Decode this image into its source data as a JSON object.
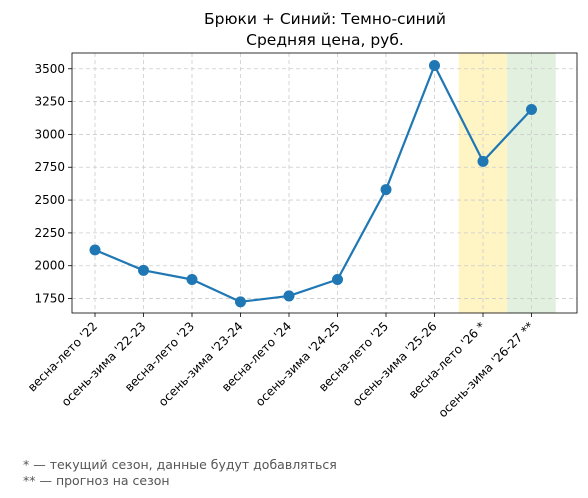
{
  "chart_data": {
    "type": "line",
    "title_line1": "Брюки + Синий: Темно-синий",
    "title_line2": "Средняя цена, руб.",
    "categories": [
      "весна-лето '22",
      "осень-зима '22-23",
      "весна-лето '23",
      "осень-зима '23-24",
      "весна-лето '24",
      "осень-зима '24-25",
      "весна-лето '25",
      "осень-зима '25-26",
      "весна-лето '26 *",
      "осень-зима '26-27 **"
    ],
    "series": [
      {
        "values": [
          2120,
          1965,
          1895,
          1725,
          1770,
          1895,
          2580,
          3525,
          2795,
          3190
        ]
      }
    ],
    "yticks": [
      1750,
      2000,
      2250,
      2500,
      2750,
      3000,
      3250,
      3500
    ],
    "ylim": [
      1640,
      3620
    ],
    "grid": true,
    "highlights": [
      {
        "category_index": 8,
        "color": "#fff4c4",
        "meaning": "current"
      },
      {
        "category_index": 9,
        "color": "#e2f0df",
        "meaning": "forecast"
      }
    ],
    "line_color": "#1f77b4"
  },
  "footnotes": {
    "current": "* — текущий сезон, данные будут добавляться",
    "forecast": "** — прогноз на сезон"
  }
}
